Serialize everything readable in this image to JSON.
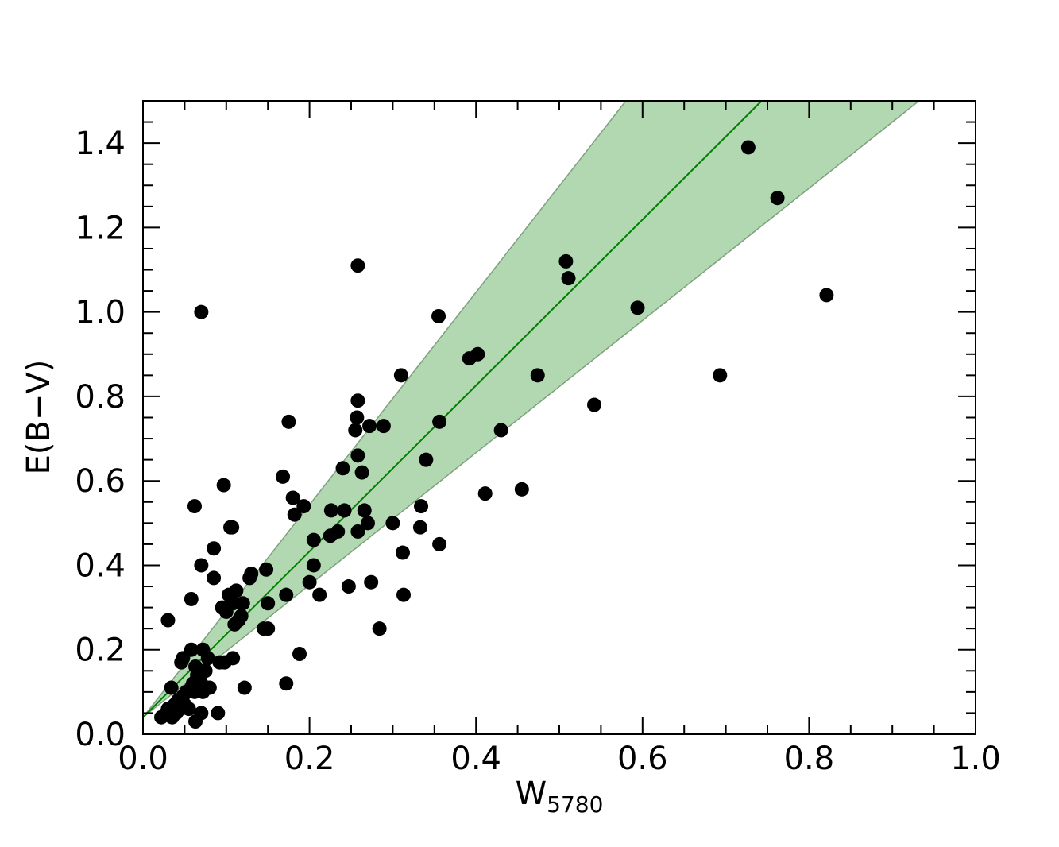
{
  "chart_data": {
    "type": "scatter",
    "xlabel": "W",
    "xlabel_subscript": "5780",
    "ylabel": "E(B−V)",
    "xlim": [
      0.0,
      1.0
    ],
    "ylim": [
      0.0,
      1.5
    ],
    "x_ticks": [
      "0.0",
      "0.2",
      "0.4",
      "0.6",
      "0.8",
      "1.0"
    ],
    "y_ticks": [
      "0.0",
      "0.2",
      "0.4",
      "0.6",
      "0.8",
      "1.0",
      "1.2",
      "1.4"
    ],
    "x_tick_values": [
      0.0,
      0.2,
      0.4,
      0.6,
      0.8,
      1.0
    ],
    "y_tick_values": [
      0.0,
      0.2,
      0.4,
      0.6,
      0.8,
      1.0,
      1.2,
      1.4
    ],
    "minor_x_step": 0.05,
    "minor_y_step": 0.05,
    "fit_line": {
      "x": [
        0.0,
        0.743
      ],
      "y": [
        0.04,
        1.5
      ],
      "color": "#007f00"
    },
    "confidence_band": {
      "upper": {
        "x": [
          0.0,
          0.58
        ],
        "y": [
          0.04,
          1.5
        ]
      },
      "lower": {
        "x": [
          0.0,
          0.932
        ],
        "y": [
          0.04,
          1.5
        ]
      },
      "fill": "#b2d8b2",
      "edge": "#7f9f7f"
    },
    "marker_color": "#000000",
    "points": [
      [
        0.022,
        0.04
      ],
      [
        0.028,
        0.05
      ],
      [
        0.03,
        0.06
      ],
      [
        0.035,
        0.04
      ],
      [
        0.038,
        0.07
      ],
      [
        0.04,
        0.05
      ],
      [
        0.042,
        0.08
      ],
      [
        0.045,
        0.06
      ],
      [
        0.048,
        0.09
      ],
      [
        0.05,
        0.07
      ],
      [
        0.052,
        0.1
      ],
      [
        0.055,
        0.06
      ],
      [
        0.058,
        0.11
      ],
      [
        0.06,
        0.12
      ],
      [
        0.062,
        0.1
      ],
      [
        0.065,
        0.14
      ],
      [
        0.068,
        0.13
      ],
      [
        0.07,
        0.12
      ],
      [
        0.072,
        0.1
      ],
      [
        0.075,
        0.15
      ],
      [
        0.08,
        0.11
      ],
      [
        0.034,
        0.11
      ],
      [
        0.046,
        0.17
      ],
      [
        0.048,
        0.18
      ],
      [
        0.058,
        0.2
      ],
      [
        0.063,
        0.16
      ],
      [
        0.072,
        0.2
      ],
      [
        0.078,
        0.18
      ],
      [
        0.092,
        0.17
      ],
      [
        0.098,
        0.17
      ],
      [
        0.108,
        0.18
      ],
      [
        0.063,
        0.03
      ],
      [
        0.07,
        0.05
      ],
      [
        0.09,
        0.05
      ],
      [
        0.122,
        0.11
      ],
      [
        0.03,
        0.27
      ],
      [
        0.058,
        0.32
      ],
      [
        0.07,
        0.4
      ],
      [
        0.085,
        0.37
      ],
      [
        0.095,
        0.3
      ],
      [
        0.1,
        0.29
      ],
      [
        0.103,
        0.33
      ],
      [
        0.108,
        0.31
      ],
      [
        0.112,
        0.34
      ],
      [
        0.11,
        0.26
      ],
      [
        0.115,
        0.27
      ],
      [
        0.118,
        0.28
      ],
      [
        0.12,
        0.31
      ],
      [
        0.128,
        0.37
      ],
      [
        0.13,
        0.38
      ],
      [
        0.145,
        0.25
      ],
      [
        0.15,
        0.25
      ],
      [
        0.15,
        0.31
      ],
      [
        0.148,
        0.39
      ],
      [
        0.172,
        0.12
      ],
      [
        0.188,
        0.19
      ],
      [
        0.172,
        0.33
      ],
      [
        0.2,
        0.36
      ],
      [
        0.205,
        0.4
      ],
      [
        0.212,
        0.33
      ],
      [
        0.205,
        0.46
      ],
      [
        0.225,
        0.47
      ],
      [
        0.226,
        0.53
      ],
      [
        0.234,
        0.48
      ],
      [
        0.242,
        0.53
      ],
      [
        0.247,
        0.35
      ],
      [
        0.258,
        0.48
      ],
      [
        0.266,
        0.53
      ],
      [
        0.27,
        0.5
      ],
      [
        0.274,
        0.36
      ],
      [
        0.284,
        0.25
      ],
      [
        0.3,
        0.5
      ],
      [
        0.312,
        0.43
      ],
      [
        0.313,
        0.33
      ],
      [
        0.333,
        0.49
      ],
      [
        0.334,
        0.54
      ],
      [
        0.356,
        0.45
      ],
      [
        0.24,
        0.63
      ],
      [
        0.258,
        0.66
      ],
      [
        0.263,
        0.62
      ],
      [
        0.097,
        0.59
      ],
      [
        0.062,
        0.54
      ],
      [
        0.085,
        0.44
      ],
      [
        0.105,
        0.49
      ],
      [
        0.107,
        0.49
      ],
      [
        0.168,
        0.61
      ],
      [
        0.175,
        0.74
      ],
      [
        0.18,
        0.56
      ],
      [
        0.182,
        0.52
      ],
      [
        0.193,
        0.54
      ],
      [
        0.255,
        0.72
      ],
      [
        0.257,
        0.75
      ],
      [
        0.258,
        0.79
      ],
      [
        0.272,
        0.73
      ],
      [
        0.289,
        0.73
      ],
      [
        0.31,
        0.85
      ],
      [
        0.34,
        0.65
      ],
      [
        0.356,
        0.74
      ],
      [
        0.355,
        0.99
      ],
      [
        0.258,
        1.11
      ],
      [
        0.07,
        1.0
      ],
      [
        0.392,
        0.89
      ],
      [
        0.402,
        0.9
      ],
      [
        0.411,
        0.57
      ],
      [
        0.43,
        0.72
      ],
      [
        0.455,
        0.58
      ],
      [
        0.474,
        0.85
      ],
      [
        0.508,
        1.12
      ],
      [
        0.511,
        1.08
      ],
      [
        0.542,
        0.78
      ],
      [
        0.594,
        1.01
      ],
      [
        0.693,
        0.85
      ],
      [
        0.727,
        1.39
      ],
      [
        0.762,
        1.27
      ],
      [
        0.821,
        1.04
      ]
    ]
  }
}
